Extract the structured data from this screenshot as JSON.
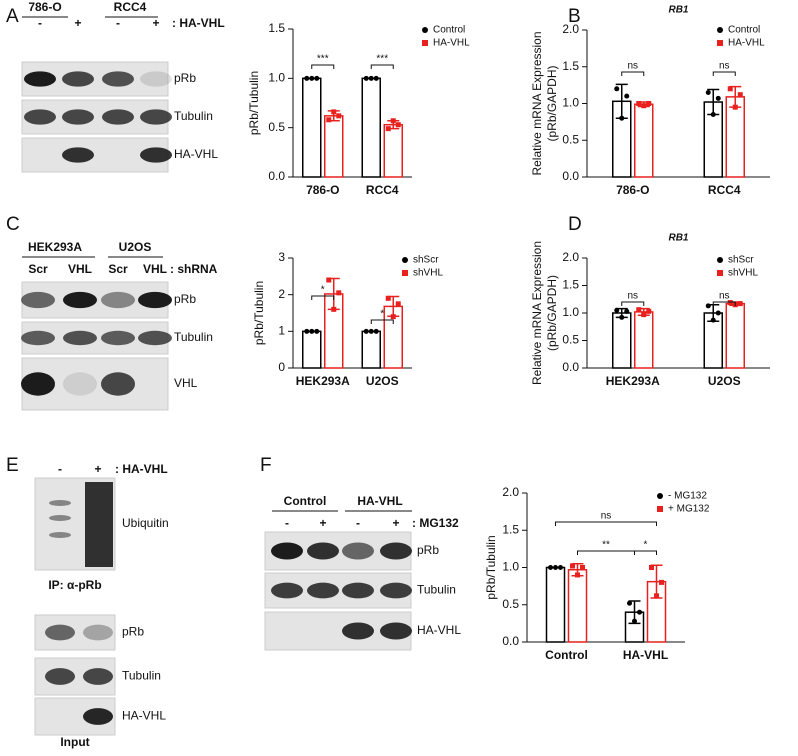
{
  "panels": [
    "A",
    "B",
    "C",
    "D",
    "E",
    "F"
  ],
  "blots": [
    {
      "headers": [
        "786-O",
        "RCC4"
      ],
      "lanes": [
        "-",
        "+",
        "-",
        "+"
      ],
      "condition": ": HA-VHL",
      "rows": [
        "pRb",
        "Tubulin",
        "HA-VHL"
      ]
    },
    {
      "headers": [
        "HEK293A",
        "U2OS"
      ],
      "lanes": [
        "Scr",
        "VHL",
        "Scr",
        "VHL"
      ],
      "condition": ": shRNA",
      "rows": [
        "pRb",
        "Tubulin",
        "VHL"
      ]
    },
    {
      "lanes": [
        "-",
        "+"
      ],
      "condition": ": HA-VHL",
      "rows": [
        "Ubiquitin"
      ],
      "caption": "IP: α-pRb",
      "input_rows": [
        "pRb",
        "Tubulin",
        "HA-VHL"
      ],
      "input_caption": "Input"
    },
    {
      "headers": [
        "Control",
        "HA-VHL"
      ],
      "lanes": [
        "-",
        "+",
        "-",
        "+"
      ],
      "condition": ": MG132",
      "rows": [
        "pRb",
        "Tubulin",
        "HA-VHL"
      ]
    }
  ],
  "chart_data": [
    {
      "type": "bar",
      "y_label": [
        "pRb/Tubulin"
      ],
      "categories": [
        "786-O",
        "RCC4"
      ],
      "series": [
        {
          "name": "Control",
          "color": "#000000",
          "values": [
            1.0,
            1.0
          ],
          "errors": [
            0,
            0
          ],
          "points": [
            [
              1,
              1,
              1
            ],
            [
              1,
              1,
              1
            ]
          ]
        },
        {
          "name": "HA-VHL",
          "color": "#e8211f",
          "values": [
            0.62,
            0.53
          ],
          "errors": [
            0.05,
            0.04
          ],
          "points": [
            [
              0.58,
              0.66,
              0.62
            ],
            [
              0.49,
              0.57,
              0.53
            ]
          ]
        }
      ],
      "ylim": [
        0,
        1.5
      ],
      "yticks": [
        {
          "value": 0,
          "label": "0.0"
        },
        {
          "value": 0.5,
          "label": "0.5"
        },
        {
          "value": 1,
          "label": "1.0"
        },
        {
          "value": 1.5,
          "label": "1.5"
        }
      ],
      "annotations": [
        "***",
        "***"
      ]
    },
    {
      "type": "bar",
      "title": "RB1",
      "y_label": [
        "Relative mRNA Expression",
        "(pRb/GAPDH)"
      ],
      "categories": [
        "786-O",
        "RCC4"
      ],
      "series": [
        {
          "name": "Control",
          "color": "#000000",
          "values": [
            1.03,
            1.02
          ],
          "errors": [
            0.23,
            0.17
          ],
          "points": [
            [
              1.2,
              0.8,
              1.1
            ],
            [
              1.15,
              0.85,
              1.07
            ]
          ]
        },
        {
          "name": "HA-VHL",
          "color": "#e8211f",
          "values": [
            0.99,
            1.09
          ],
          "errors": [
            0.03,
            0.14
          ],
          "points": [
            [
              1.0,
              0.97,
              1.0
            ],
            [
              1.2,
              0.95,
              1.12
            ]
          ]
        }
      ],
      "ylim": [
        0,
        2
      ],
      "yticks": [
        {
          "value": 0,
          "label": "0.0"
        },
        {
          "value": 0.5,
          "label": "0.5"
        },
        {
          "value": 1,
          "label": "1.0"
        },
        {
          "value": 1.5,
          "label": "1.5"
        },
        {
          "value": 2,
          "label": "2.0"
        }
      ],
      "annotations": [
        "ns",
        "ns"
      ]
    },
    {
      "type": "bar",
      "y_label": [
        "pRb/Tubulin"
      ],
      "categories": [
        "HEK293A",
        "U2OS"
      ],
      "series": [
        {
          "name": "shScr",
          "color": "#000000",
          "values": [
            1,
            1
          ],
          "errors": [
            0,
            0
          ],
          "points": [
            [
              1,
              1,
              1
            ],
            [
              1,
              1,
              1
            ]
          ]
        },
        {
          "name": "shVHL",
          "color": "#e8211f",
          "values": [
            2.02,
            1.68
          ],
          "errors": [
            0.42,
            0.27
          ],
          "points": [
            [
              2.4,
              1.6,
              2.05
            ],
            [
              1.9,
              1.4,
              1.75
            ]
          ]
        }
      ],
      "ylim": [
        0,
        3
      ],
      "yticks": [
        0,
        1,
        2,
        3
      ],
      "annotations": [
        "*",
        "*"
      ]
    },
    {
      "type": "bar",
      "title": "RB1",
      "y_label": [
        "Relative mRNA Expression",
        "(pRb/GAPDH)"
      ],
      "categories": [
        "HEK293A",
        "U2OS"
      ],
      "series": [
        {
          "name": "shScr",
          "color": "#000000",
          "values": [
            1.0,
            1.0
          ],
          "errors": [
            0.08,
            0.15
          ],
          "points": [
            [
              1.05,
              0.92,
              1.03
            ],
            [
              1.13,
              0.87,
              1.0
            ]
          ]
        },
        {
          "name": "shVHL",
          "color": "#e8211f",
          "values": [
            1.02,
            1.17
          ],
          "errors": [
            0.06,
            0.03
          ],
          "points": [
            [
              1.06,
              0.97,
              1.03
            ],
            [
              1.19,
              1.15,
              1.17
            ]
          ]
        }
      ],
      "ylim": [
        0,
        2
      ],
      "yticks": [
        {
          "value": 0,
          "label": "0.0"
        },
        {
          "value": 0.5,
          "label": "0.5"
        },
        {
          "value": 1,
          "label": "1.0"
        },
        {
          "value": 1.5,
          "label": "1.5"
        },
        {
          "value": 2,
          "label": "2.0"
        }
      ],
      "annotations": [
        "ns",
        "ns"
      ]
    },
    {
      "type": "bar",
      "y_label": [
        "pRb/Tubulin"
      ],
      "categories": [
        "Control",
        "HA-VHL"
      ],
      "series": [
        {
          "name": "- MG132",
          "color": "#000000",
          "values": [
            1.0,
            0.4
          ],
          "errors": [
            0,
            0.15
          ],
          "points": [
            [
              1,
              1,
              1
            ],
            [
              0.52,
              0.28,
              0.4
            ]
          ]
        },
        {
          "name": "+ MG132",
          "color": "#e8211f",
          "values": [
            0.97,
            0.81
          ],
          "errors": [
            0.08,
            0.22
          ],
          "points": [
            [
              1.02,
              0.9,
              1.0
            ],
            [
              1.0,
              0.62,
              0.8
            ]
          ]
        }
      ],
      "ylim": [
        0,
        2
      ],
      "yticks": [
        {
          "value": 0,
          "label": "0.0"
        },
        {
          "value": 0.5,
          "label": "0.5"
        },
        {
          "value": 1,
          "label": "1.0"
        },
        {
          "value": 1.5,
          "label": "1.5"
        },
        {
          "value": 2,
          "label": "2.0"
        }
      ],
      "annotations": [
        "ns",
        "**",
        "*"
      ]
    }
  ]
}
